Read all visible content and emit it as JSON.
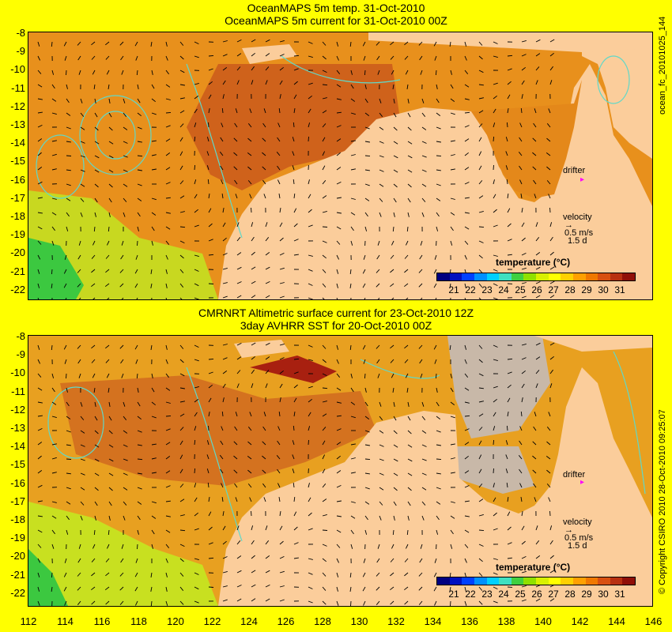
{
  "top_panel": {
    "title_line1": "OceanMAPS 5m temp. 31-Oct-2010",
    "title_line2": "OceanMAPS 5m current for 31-Oct-2010 00Z"
  },
  "bottom_panel": {
    "title_line1": "CMRNRT Altimetric surface current for 23-Oct-2010 12Z",
    "title_line2": "3day AVHRR SST for 20-Oct-2010 00Z"
  },
  "latitude_labels": [
    "-8",
    "-9",
    "-10",
    "-11",
    "-12",
    "-13",
    "-14",
    "-15",
    "-16",
    "-17",
    "-18",
    "-19",
    "-20",
    "-21",
    "-22"
  ],
  "longitude_labels": [
    "112",
    "114",
    "116",
    "118",
    "120",
    "122",
    "124",
    "126",
    "128",
    "130",
    "132",
    "134",
    "136",
    "138",
    "140",
    "142",
    "144",
    "146"
  ],
  "legend": {
    "title": "temperature (°C)",
    "ticks": [
      "21",
      "22",
      "23",
      "24",
      "25",
      "26",
      "27",
      "28",
      "29",
      "30",
      "31"
    ],
    "colors": [
      "#000080",
      "#0010c0",
      "#0040ff",
      "#0090ff",
      "#00d0ff",
      "#40e0c0",
      "#40d040",
      "#90e000",
      "#d8f000",
      "#ffff00",
      "#ffd000",
      "#ffa000",
      "#f07800",
      "#d85010",
      "#b83010",
      "#901008"
    ]
  },
  "annotations": {
    "drifter": "drifter",
    "velocity": "velocity",
    "speed": "0.5 m/s",
    "duration": "1.5 d"
  },
  "side_text": {
    "top": "ocean_fc_20101025_144",
    "bottom": "© Copyright CSIRO 2010    28-Oct-2010 09:25:07"
  }
}
